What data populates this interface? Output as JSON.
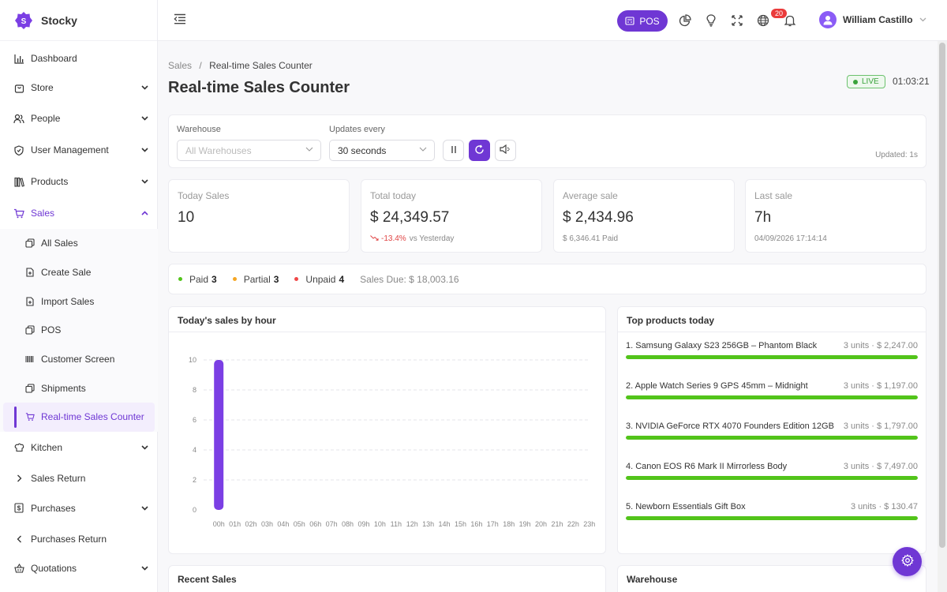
{
  "app": {
    "name": "Stocky",
    "logo_letter": "S"
  },
  "sidebar": {
    "items": [
      {
        "name": "dashboard",
        "label": "Dashboard",
        "icon": "bar-chart-icon"
      },
      {
        "name": "store",
        "label": "Store",
        "icon": "bag-icon"
      },
      {
        "name": "people",
        "label": "People",
        "icon": "users-icon"
      },
      {
        "name": "user-management",
        "label": "User Management",
        "icon": "shield-icon"
      },
      {
        "name": "products",
        "label": "Products",
        "icon": "books-icon"
      },
      {
        "name": "sales",
        "label": "Sales",
        "icon": "cart-icon"
      }
    ],
    "sales_sub": [
      {
        "name": "all-sales",
        "label": "All Sales"
      },
      {
        "name": "create-sale",
        "label": "Create Sale"
      },
      {
        "name": "import-sales",
        "label": "Import Sales"
      },
      {
        "name": "pos",
        "label": "POS"
      },
      {
        "name": "customer-screen",
        "label": "Customer Screen"
      },
      {
        "name": "shipments",
        "label": "Shipments"
      },
      {
        "name": "realtime-sales-counter",
        "label": "Real-time Sales Counter"
      }
    ],
    "after": [
      {
        "name": "kitchen",
        "label": "Kitchen"
      },
      {
        "name": "sales-return",
        "label": "Sales Return"
      },
      {
        "name": "purchases",
        "label": "Purchases"
      },
      {
        "name": "purchases-return",
        "label": "Purchases Return"
      },
      {
        "name": "quotations",
        "label": "Quotations"
      }
    ]
  },
  "topbar": {
    "pos_label": "POS",
    "notifications_count": "20",
    "user_name": "William Castillo"
  },
  "breadcrumb": {
    "parent": "Sales",
    "separator": "/",
    "current": "Real-time Sales Counter"
  },
  "page": {
    "title": "Real-time Sales Counter",
    "live_label": "LIVE",
    "clock": "01:03:21"
  },
  "filters": {
    "warehouse_label": "Warehouse",
    "warehouse_placeholder": "All Warehouses",
    "interval_label": "Updates every",
    "interval_value": "30 seconds",
    "updated": "Updated: 1s"
  },
  "stats": [
    {
      "label": "Today Sales",
      "value": "10",
      "sub": ""
    },
    {
      "label": "Total today",
      "value": "$ 24,349.57",
      "sub_neg": "-13.4%",
      "sub": "vs Yesterday"
    },
    {
      "label": "Average sale",
      "value": "$ 2,434.96",
      "sub": "$ 6,346.41 Paid"
    },
    {
      "label": "Last sale",
      "value": "7h",
      "sub": "04/09/2026 17:14:14"
    }
  ],
  "status": {
    "paid_label": "Paid",
    "paid_count": "3",
    "partial_label": "Partial",
    "partial_count": "3",
    "unpaid_label": "Unpaid",
    "unpaid_count": "4",
    "due": "Sales Due: $ 18,003.16",
    "colors": {
      "paid": "#52c41a",
      "partial": "#f5a623",
      "unpaid": "#f04848"
    }
  },
  "chart_panel": {
    "title": "Today's sales by hour"
  },
  "chart_data": {
    "type": "bar",
    "categories": [
      "00h",
      "01h",
      "02h",
      "03h",
      "04h",
      "05h",
      "06h",
      "07h",
      "08h",
      "09h",
      "10h",
      "11h",
      "12h",
      "13h",
      "14h",
      "15h",
      "16h",
      "17h",
      "18h",
      "19h",
      "20h",
      "21h",
      "22h",
      "23h"
    ],
    "values": [
      10,
      0,
      0,
      0,
      0,
      0,
      0,
      0,
      0,
      0,
      0,
      0,
      0,
      0,
      0,
      0,
      0,
      0,
      0,
      0,
      0,
      0,
      0,
      0
    ],
    "yticks": [
      "0",
      "2",
      "4",
      "6",
      "8",
      "10"
    ],
    "ylim": [
      0,
      10
    ],
    "grid": true,
    "color": "#7b3fe4"
  },
  "top_products": {
    "title": "Top products today",
    "items": [
      {
        "name": "1. Samsung Galaxy S23 256GB – Phantom Black",
        "value": "3 units · $ 2,247.00",
        "fill": 1
      },
      {
        "name": "2. Apple Watch Series 9 GPS 45mm – Midnight",
        "value": "3 units · $ 1,197.00",
        "fill": 1
      },
      {
        "name": "3. NVIDIA GeForce RTX 4070 Founders Edition 12GB",
        "value": "3 units · $ 1,797.00",
        "fill": 1
      },
      {
        "name": "4. Canon EOS R6 Mark II Mirrorless Body",
        "value": "3 units · $ 7,497.00",
        "fill": 1
      },
      {
        "name": "5. Newborn Essentials Gift Box",
        "value": "3 units · $ 130.47",
        "fill": 1
      }
    ]
  },
  "recent_sales": {
    "title": "Recent Sales"
  },
  "warehouse_panel": {
    "title": "Warehouse"
  },
  "theme": {
    "accent": "#6f37d4",
    "progress": "#52c41a"
  }
}
